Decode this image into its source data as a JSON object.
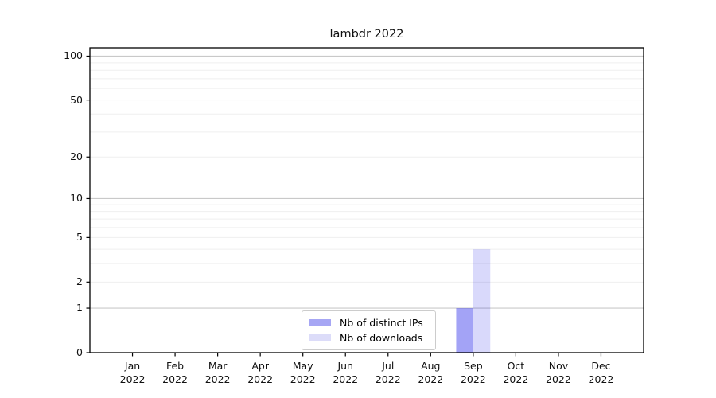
{
  "chart_data": {
    "type": "bar",
    "title": "lambdr 2022",
    "categories": [
      "Jan",
      "Feb",
      "Mar",
      "Apr",
      "May",
      "Jun",
      "Jul",
      "Aug",
      "Sep",
      "Oct",
      "Nov",
      "Dec"
    ],
    "category_year_label": "2022",
    "series": [
      {
        "name": "Nb of distinct IPs",
        "color_rgba": "rgba(0,0,230,0.36)",
        "swatch_color": "#a6a6f4",
        "values": [
          0,
          0,
          0,
          0,
          0,
          0,
          0,
          0,
          1,
          0,
          0,
          0
        ]
      },
      {
        "name": "Nb of downloads",
        "color_rgba": "rgba(0,0,230,0.15)",
        "swatch_color": "#dcdcf9",
        "values": [
          0,
          0,
          0,
          0,
          0,
          0,
          0,
          0,
          4,
          0,
          0,
          0
        ]
      }
    ],
    "yscale": "log1p",
    "ylim": [
      0,
      114
    ],
    "yticks": [
      0,
      1,
      2,
      5,
      10,
      20,
      50,
      100
    ],
    "major_grid_values": [
      1,
      10,
      100
    ],
    "minor_grid_values": [
      2,
      3,
      4,
      5,
      6,
      7,
      8,
      9,
      20,
      30,
      40,
      50,
      60,
      70,
      80,
      90
    ],
    "grid": "horizontal",
    "legend": {
      "position": "lower-center-inside",
      "items": [
        {
          "label": "Nb of distinct IPs"
        },
        {
          "label": "Nb of downloads"
        }
      ]
    },
    "colors": {
      "frame": "#000000",
      "major_grid": "#c9c9c9",
      "minor_grid": "#efefef",
      "background": "#ffffff"
    }
  }
}
